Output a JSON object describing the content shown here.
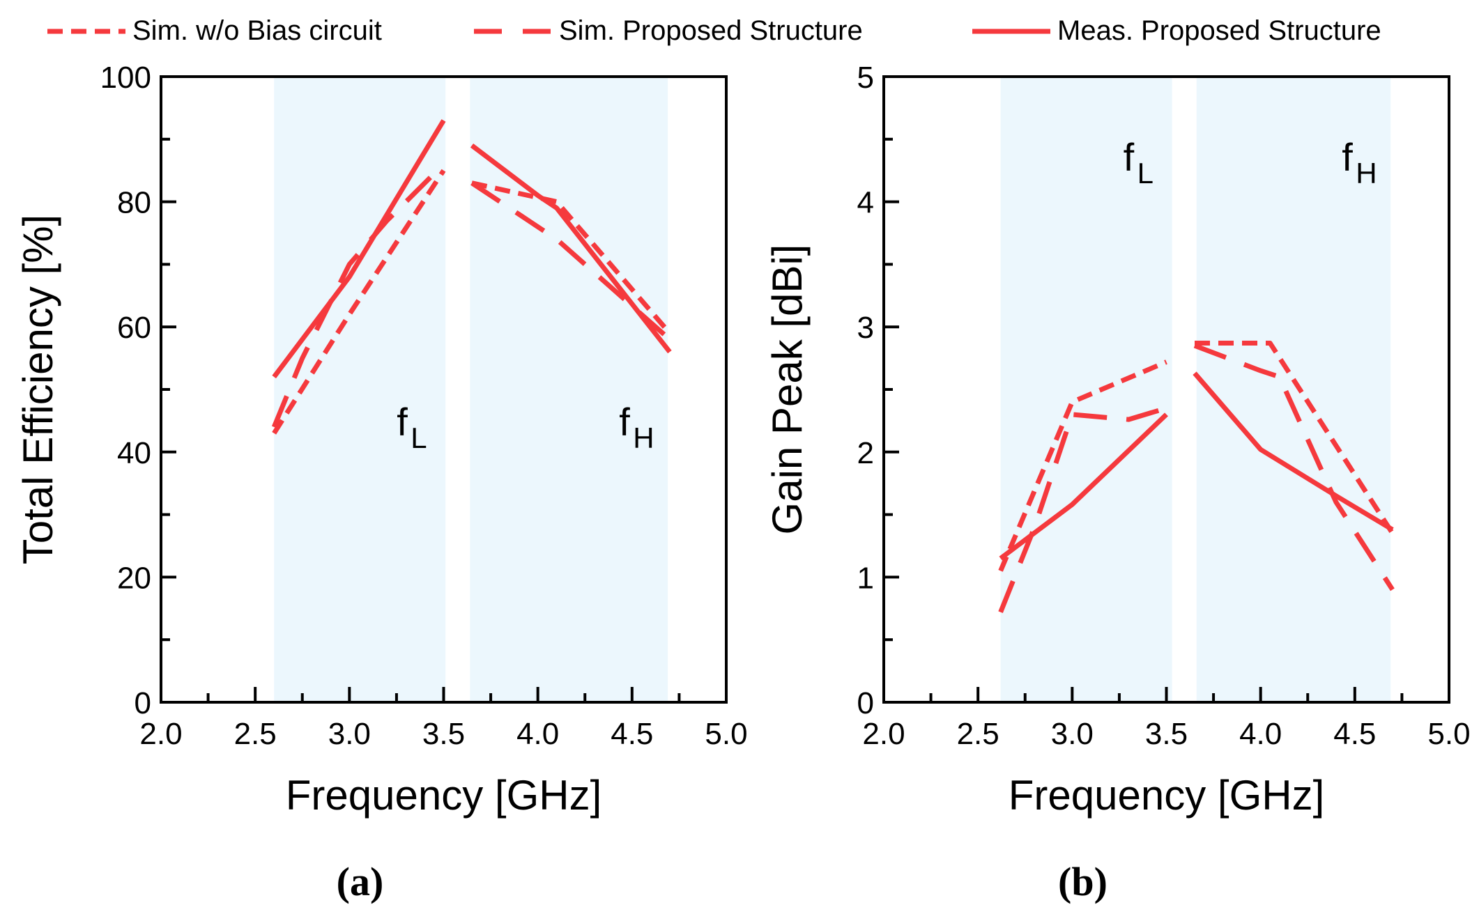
{
  "colors": {
    "line": "#f5393d",
    "band": "#ecf7fd",
    "axis": "#000000"
  },
  "legend": [
    {
      "label": "Sim. w/o Bias circuit",
      "style": "short-dash"
    },
    {
      "label": "Sim. Proposed Structure",
      "style": "long-dash"
    },
    {
      "label": "Meas. Proposed Structure",
      "style": "solid"
    }
  ],
  "chart_data": [
    {
      "type": "line",
      "panel_label": "(a)",
      "xlabel": "Frequency [GHz]",
      "ylabel": "Total Efficiency [%]",
      "xlim": [
        2.0,
        5.0
      ],
      "ylim": [
        0,
        100
      ],
      "xticks": [
        "2.0",
        "2.5",
        "3.0",
        "3.5",
        "4.0",
        "4.5",
        "5.0"
      ],
      "yticks": [
        "0",
        "20",
        "40",
        "60",
        "80",
        "100"
      ],
      "bands": [
        {
          "range": [
            2.6,
            3.51
          ],
          "label": "f",
          "sub": "L"
        },
        {
          "range": [
            3.64,
            4.69
          ],
          "label": "f",
          "sub": "H"
        }
      ],
      "series": [
        {
          "name": "Sim. w/o Bias circuit",
          "style": "short-dash",
          "segments": [
            [
              [
                2.6,
                43
              ],
              [
                3.0,
                62
              ],
              [
                3.5,
                85
              ]
            ],
            [
              [
                3.65,
                83
              ],
              [
                4.1,
                80
              ],
              [
                4.7,
                59
              ]
            ]
          ]
        },
        {
          "name": "Sim. Proposed Structure",
          "style": "long-dash",
          "segments": [
            [
              [
                2.6,
                44
              ],
              [
                2.75,
                55
              ],
              [
                3.0,
                70
              ],
              [
                3.2,
                77
              ],
              [
                3.5,
                86
              ]
            ],
            [
              [
                3.65,
                83
              ],
              [
                3.9,
                78
              ],
              [
                4.1,
                74
              ],
              [
                4.4,
                66
              ],
              [
                4.7,
                58
              ]
            ]
          ]
        },
        {
          "name": "Meas. Proposed Structure",
          "style": "solid",
          "segments": [
            [
              [
                2.6,
                52
              ],
              [
                2.85,
                62
              ],
              [
                3.0,
                68
              ],
              [
                3.5,
                93
              ]
            ],
            [
              [
                3.65,
                89
              ],
              [
                4.0,
                81
              ],
              [
                4.1,
                79
              ],
              [
                4.7,
                56
              ]
            ]
          ]
        }
      ]
    },
    {
      "type": "line",
      "panel_label": "(b)",
      "xlabel": "Frequency [GHz]",
      "ylabel": "Gain Peak [dBi]",
      "xlim": [
        2.0,
        5.0
      ],
      "ylim": [
        0,
        5
      ],
      "xticks": [
        "2.0",
        "2.5",
        "3.0",
        "3.5",
        "4.0",
        "4.5",
        "5.0"
      ],
      "yticks": [
        "0",
        "1",
        "2",
        "3",
        "4",
        "5"
      ],
      "bands": [
        {
          "range": [
            2.62,
            3.53
          ],
          "label": "f",
          "sub": "L"
        },
        {
          "range": [
            3.66,
            4.69
          ],
          "label": "f",
          "sub": "H"
        }
      ],
      "series": [
        {
          "name": "Sim. w/o Bias circuit",
          "style": "short-dash",
          "segments": [
            [
              [
                2.62,
                1.05
              ],
              [
                3.0,
                2.4
              ],
              [
                3.5,
                2.72
              ]
            ],
            [
              [
                3.65,
                2.87
              ],
              [
                4.05,
                2.87
              ],
              [
                4.7,
                1.35
              ]
            ]
          ]
        },
        {
          "name": "Sim. Proposed Structure",
          "style": "long-dash",
          "segments": [
            [
              [
                2.62,
                0.72
              ],
              [
                2.8,
                1.4
              ],
              [
                3.0,
                2.3
              ],
              [
                3.3,
                2.26
              ],
              [
                3.5,
                2.35
              ]
            ],
            [
              [
                3.65,
                2.85
              ],
              [
                4.0,
                2.65
              ],
              [
                4.1,
                2.6
              ],
              [
                4.4,
                1.6
              ],
              [
                4.7,
                0.9
              ]
            ]
          ]
        },
        {
          "name": "Meas. Proposed Structure",
          "style": "solid",
          "segments": [
            [
              [
                2.62,
                1.15
              ],
              [
                3.0,
                1.58
              ],
              [
                3.5,
                2.3
              ]
            ],
            [
              [
                3.65,
                2.63
              ],
              [
                4.0,
                2.02
              ],
              [
                4.4,
                1.65
              ],
              [
                4.7,
                1.38
              ]
            ]
          ]
        }
      ]
    }
  ]
}
